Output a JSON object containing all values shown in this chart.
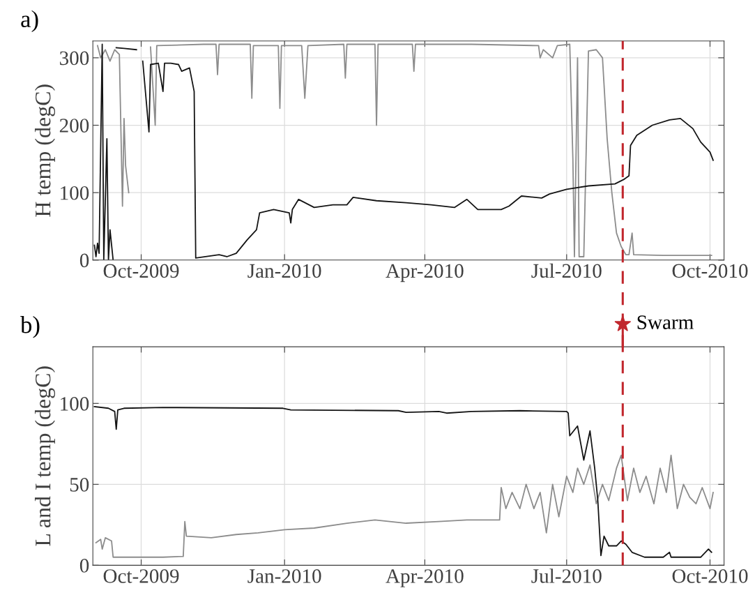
{
  "chart_data": [
    {
      "type": "line",
      "title": "a)",
      "ylabel": "H temp (degC)",
      "grid": true,
      "marker": "none",
      "line_style": "solid",
      "xlim": [
        "2009-08-31",
        "2010-10-10"
      ],
      "ylim": [
        0,
        325
      ],
      "yticks": [
        0,
        100,
        200,
        300
      ],
      "xticks": [
        {
          "value": "2009-10-01",
          "label": "Oct-2009"
        },
        {
          "value": "2010-01-01",
          "label": "Jan-2010"
        },
        {
          "value": "2010-04-01",
          "label": "Apr-2010"
        },
        {
          "value": "2010-07-01",
          "label": "Jul-2010"
        },
        {
          "value": "2010-10-01",
          "label": "Oct-2010"
        }
      ],
      "ref_lines": [
        {
          "axis": "x",
          "value": "2010-08-06",
          "label": null,
          "color": "#c1272d",
          "line_style": "dashed"
        }
      ],
      "series": [
        {
          "color": "#8c8c8c",
          "x": [
            "2009-09-03",
            "2009-09-05",
            "2009-09-08",
            "2009-09-11",
            "2009-09-14",
            "2009-09-17",
            "2009-09-19",
            "2009-09-20",
            "2009-09-21",
            "2009-09-23",
            "2009-09-24",
            "2009-10-07",
            "2009-10-10",
            "2009-10-11",
            "2009-11-10",
            "2009-11-18",
            "2009-11-19",
            "2009-11-20",
            "2009-12-10",
            "2009-12-11",
            "2009-12-12",
            "2009-12-28",
            "2009-12-29",
            "2009-12-30",
            "2010-01-12",
            "2010-01-14",
            "2010-01-16",
            "2010-02-08",
            "2010-02-09",
            "2010-02-10",
            "2010-02-28",
            "2010-03-01",
            "2010-03-02",
            "2010-03-24",
            "2010-03-25",
            "2010-03-26",
            "2010-05-01",
            "2010-06-13",
            "2010-06-14",
            "2010-06-16",
            "2010-06-22",
            "2010-06-25",
            "2010-07-03",
            "2010-07-05",
            "2010-07-06",
            "2010-07-08",
            "2010-07-09",
            "2010-07-12",
            "2010-07-15",
            "2010-07-20",
            "2010-07-24",
            "2010-07-27",
            "2010-07-30",
            "2010-08-02",
            "2010-08-05",
            "2010-08-08",
            "2010-08-10",
            "2010-08-12",
            "2010-08-13",
            "2010-09-01",
            "2010-09-20",
            "2010-10-02"
          ],
          "values": [
            318,
            300,
            312,
            295,
            312,
            305,
            80,
            210,
            140,
            100,
            null,
            316,
            200,
            318,
            320,
            320,
            275,
            320,
            320,
            240,
            318,
            318,
            225,
            318,
            318,
            240,
            318,
            320,
            270,
            320,
            320,
            200,
            320,
            320,
            280,
            320,
            320,
            318,
            300,
            312,
            300,
            318,
            320,
            150,
            5,
            300,
            5,
            5,
            310,
            312,
            300,
            180,
            100,
            40,
            20,
            8,
            8,
            40,
            8,
            7,
            7,
            7
          ]
        },
        {
          "color": "#141414",
          "x": [
            "2009-09-01",
            "2009-09-02",
            "2009-09-03",
            "2009-09-04",
            "2009-09-06",
            "2009-09-07",
            "2009-09-09",
            "2009-09-10",
            "2009-09-11",
            "2009-09-13",
            "2009-09-14",
            "2009-09-15",
            "2009-09-20",
            "2009-09-28",
            "2009-09-29",
            "2009-10-02",
            "2009-10-06",
            "2009-10-07",
            "2009-10-12",
            "2009-10-15",
            "2009-10-16",
            "2009-10-20",
            "2009-10-25",
            "2009-10-27",
            "2009-11-01",
            "2009-11-04",
            "2009-11-05",
            "2009-11-20",
            "2009-11-25",
            "2009-12-01",
            "2009-12-08",
            "2009-12-14",
            "2009-12-16",
            "2009-12-25",
            "2010-01-04",
            "2010-01-05",
            "2010-01-06",
            "2010-01-10",
            "2010-01-20",
            "2010-02-01",
            "2010-02-10",
            "2010-02-14",
            "2010-03-01",
            "2010-03-20",
            "2010-04-05",
            "2010-04-20",
            "2010-04-28",
            "2010-05-05",
            "2010-05-20",
            "2010-05-25",
            "2010-06-02",
            "2010-06-15",
            "2010-06-20",
            "2010-07-01",
            "2010-07-15",
            "2010-08-01",
            "2010-08-07",
            "2010-08-10",
            "2010-08-11",
            "2010-08-15",
            "2010-08-25",
            "2010-09-05",
            "2010-09-12",
            "2010-09-20",
            "2010-09-25",
            "2010-10-01",
            "2010-10-03"
          ],
          "values": [
            22,
            5,
            25,
            10,
            320,
            0,
            180,
            0,
            45,
            0,
            null,
            315,
            314,
            312,
            null,
            295,
            190,
            290,
            292,
            250,
            292,
            292,
            290,
            280,
            285,
            250,
            3,
            8,
            5,
            10,
            30,
            45,
            70,
            75,
            70,
            55,
            75,
            90,
            78,
            82,
            82,
            93,
            88,
            85,
            82,
            78,
            90,
            75,
            75,
            80,
            95,
            92,
            98,
            105,
            110,
            113,
            120,
            125,
            170,
            185,
            200,
            208,
            210,
            195,
            175,
            160,
            148
          ]
        }
      ]
    },
    {
      "type": "line",
      "title": "b)",
      "ylabel": "L and I temp (degC)",
      "grid": true,
      "marker": "none",
      "line_style": "solid",
      "xlim": [
        "2009-08-31",
        "2010-10-10"
      ],
      "ylim": [
        0,
        135
      ],
      "yticks": [
        0,
        50,
        100
      ],
      "xticks": [
        {
          "value": "2009-10-01",
          "label": "Oct-2009"
        },
        {
          "value": "2010-01-01",
          "label": "Jan-2010"
        },
        {
          "value": "2010-04-01",
          "label": "Apr-2010"
        },
        {
          "value": "2010-07-01",
          "label": "Jul-2010"
        },
        {
          "value": "2010-10-01",
          "label": "Oct-2010"
        }
      ],
      "ref_lines": [
        {
          "axis": "x",
          "value": "2010-08-06",
          "label": null,
          "color": "#c1272d",
          "line_style": "dashed"
        }
      ],
      "annotations": [
        {
          "text": "Swarm",
          "x": "2010-08-06",
          "y": 149
        }
      ],
      "series": [
        {
          "color": "#8c8c8c",
          "x": [
            "2009-09-02",
            "2009-09-05",
            "2009-09-06",
            "2009-09-08",
            "2009-09-12",
            "2009-09-13",
            "2009-10-15",
            "2009-10-28",
            "2009-10-29",
            "2009-10-30",
            "2009-11-15",
            "2009-12-01",
            "2009-12-15",
            "2010-01-01",
            "2010-01-20",
            "2010-02-10",
            "2010-02-28",
            "2010-03-20",
            "2010-04-10",
            "2010-04-28",
            "2010-05-19",
            "2010-05-20",
            "2010-05-23",
            "2010-05-27",
            "2010-06-01",
            "2010-06-05",
            "2010-06-10",
            "2010-06-14",
            "2010-06-18",
            "2010-06-22",
            "2010-06-26",
            "2010-07-01",
            "2010-07-05",
            "2010-07-08",
            "2010-07-12",
            "2010-07-16",
            "2010-07-20",
            "2010-07-24",
            "2010-07-28",
            "2010-08-02",
            "2010-08-05",
            "2010-08-09",
            "2010-08-13",
            "2010-08-17",
            "2010-08-21",
            "2010-08-26",
            "2010-08-30",
            "2010-09-03",
            "2010-09-06",
            "2010-09-10",
            "2010-09-14",
            "2010-09-18",
            "2010-09-22",
            "2010-09-26",
            "2010-10-01",
            "2010-10-03"
          ],
          "values": [
            14,
            16,
            10,
            17,
            15,
            5,
            5,
            5.5,
            27,
            18,
            17,
            19,
            20,
            22,
            23,
            26,
            28,
            26,
            27,
            28,
            28,
            48,
            35,
            45,
            35,
            50,
            35,
            45,
            20,
            50,
            30,
            55,
            45,
            60,
            50,
            62,
            38,
            50,
            40,
            60,
            68,
            40,
            60,
            45,
            55,
            38,
            60,
            45,
            68,
            35,
            50,
            42,
            38,
            48,
            35,
            45
          ]
        },
        {
          "color": "#141414",
          "x": [
            "2009-09-01",
            "2009-09-10",
            "2009-09-14",
            "2009-09-15",
            "2009-09-16",
            "2009-09-20",
            "2009-10-15",
            "2009-12-31",
            "2010-01-05",
            "2010-03-15",
            "2010-03-20",
            "2010-04-10",
            "2010-04-15",
            "2010-05-01",
            "2010-06-01",
            "2010-07-01",
            "2010-07-02",
            "2010-07-03",
            "2010-07-08",
            "2010-07-12",
            "2010-07-16",
            "2010-07-19",
            "2010-07-21",
            "2010-07-23",
            "2010-07-25",
            "2010-07-28",
            "2010-08-02",
            "2010-08-05",
            "2010-08-08",
            "2010-08-12",
            "2010-08-20",
            "2010-09-01",
            "2010-09-05",
            "2010-09-06",
            "2010-09-25",
            "2010-09-30",
            "2010-10-02"
          ],
          "values": [
            98,
            97,
            95,
            84,
            96,
            97,
            97.5,
            97,
            96,
            95.5,
            94.5,
            95,
            94,
            95,
            95.5,
            95,
            94,
            80,
            86,
            65,
            83,
            60,
            40,
            6,
            18,
            12,
            12,
            15,
            13,
            8,
            5,
            5,
            8,
            5,
            5,
            10,
            8
          ]
        }
      ]
    }
  ]
}
